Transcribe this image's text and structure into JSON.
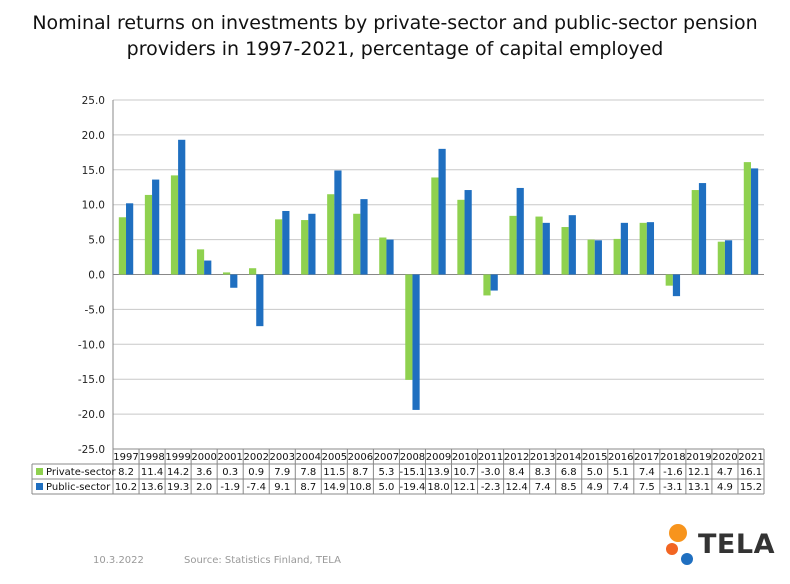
{
  "chart_data": {
    "type": "bar",
    "title_line1": "Nominal returns on investments by private-sector and public-sector pension",
    "title_line2": "providers in 1997-2021, percentage of capital employed",
    "categories": [
      "1997",
      "1998",
      "1999",
      "2000",
      "2001",
      "2002",
      "2003",
      "2004",
      "2005",
      "2006",
      "2007",
      "2008",
      "2009",
      "2010",
      "2011",
      "2012",
      "2013",
      "2014",
      "2015",
      "2016",
      "2017",
      "2018",
      "2019",
      "2020",
      "2021"
    ],
    "series": [
      {
        "name": "Private-sector",
        "color": "#8fd14f",
        "values": [
          8.2,
          11.4,
          14.2,
          3.6,
          0.3,
          0.9,
          7.9,
          7.8,
          11.5,
          8.7,
          5.3,
          -15.1,
          13.9,
          10.7,
          -3.0,
          8.4,
          8.3,
          6.8,
          5.0,
          5.1,
          7.4,
          -1.6,
          12.1,
          4.7,
          16.1
        ],
        "labels": [
          "8.2",
          "11.4",
          "14.2",
          "3.6",
          "0.3",
          "0.9",
          "7.9",
          "7.8",
          "11.5",
          "8.7",
          "5.3",
          "-15.1",
          "13.9",
          "10.7",
          "-3.0",
          "8.4",
          "8.3",
          "6.8",
          "5.0",
          "5.1",
          "7.4",
          "-1.6",
          "12.1",
          "4.7",
          "16.1"
        ]
      },
      {
        "name": "Public-sector",
        "color": "#1f6fc0",
        "values": [
          10.2,
          13.6,
          19.3,
          2.0,
          -1.9,
          -7.4,
          9.1,
          8.7,
          14.9,
          10.8,
          5.0,
          -19.4,
          18.0,
          12.1,
          -2.3,
          12.4,
          7.4,
          8.5,
          4.9,
          7.4,
          7.5,
          -3.1,
          13.1,
          4.9,
          15.2
        ],
        "labels": [
          "10.2",
          "13.6",
          "19.3",
          "2.0",
          "-1.9",
          "-7.4",
          "9.1",
          "8.7",
          "14.9",
          "10.8",
          "5.0",
          "-19.4",
          "18.0",
          "12.1",
          "-2.3",
          "12.4",
          "7.4",
          "8.5",
          "4.9",
          "7.4",
          "7.5",
          "-3.1",
          "13.1",
          "4.9",
          "15.2"
        ]
      }
    ],
    "ylim": [
      -25,
      25
    ],
    "yticks": [
      "25.0",
      "20.0",
      "15.0",
      "10.0",
      "5.0",
      "0.0",
      "-5.0",
      "-10.0",
      "-15.0",
      "-20.0",
      "-25.0"
    ],
    "grid": true,
    "legend": "data-table"
  },
  "footer": {
    "date": "10.3.2022",
    "source": "Source: Statistics Finland, TELA"
  },
  "logo": {
    "text": "TELA",
    "colors": [
      "#f7941d",
      "#f26522",
      "#1f6fc0"
    ]
  }
}
